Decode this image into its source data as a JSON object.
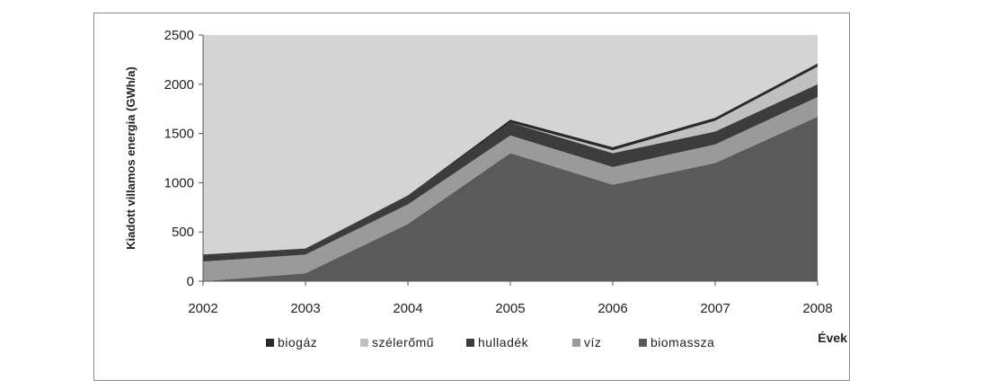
{
  "chart_data": {
    "type": "area",
    "stacked": true,
    "x": [
      2002,
      2003,
      2004,
      2005,
      2006,
      2007,
      2008
    ],
    "xlabel": "Évek",
    "ylabel": "Kiadott villamos energia (GWh/a)",
    "ylim": [
      0,
      2500
    ],
    "yticks": [
      0,
      500,
      1000,
      1500,
      2000,
      2500
    ],
    "legend_position": "bottom",
    "series": [
      {
        "name": "biomassza",
        "color": "#5a5a5a",
        "values": [
          0,
          80,
          580,
          1300,
          980,
          1200,
          1670
        ]
      },
      {
        "name": "víz",
        "color": "#9a9a9a",
        "values": [
          200,
          190,
          200,
          180,
          180,
          190,
          200
        ]
      },
      {
        "name": "hulladék",
        "color": "#3c3c3c",
        "values": [
          60,
          50,
          80,
          130,
          140,
          130,
          130
        ]
      },
      {
        "name": "szélerőmű",
        "color": "#c0c0c0",
        "values": [
          0,
          0,
          0,
          0,
          30,
          110,
          180
        ]
      },
      {
        "name": "biogáz",
        "color": "#2a2a2a",
        "values": [
          10,
          10,
          10,
          30,
          30,
          30,
          30
        ]
      }
    ],
    "legend_order": [
      "biogáz",
      "szélerőmű",
      "hulladék",
      "víz",
      "biomassza"
    ],
    "plot_background": "#d4d4d4"
  }
}
